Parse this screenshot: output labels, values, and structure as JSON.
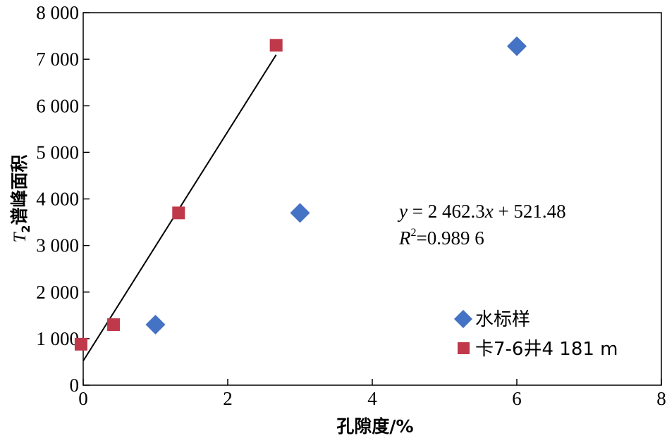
{
  "chart_data": {
    "type": "scatter",
    "xlabel": "孔隙度/%",
    "ylabel_italic": "T",
    "ylabel_sub": "2",
    "ylabel_rest": "谱峰面积",
    "xlim": [
      0,
      8
    ],
    "ylim": [
      0,
      8000
    ],
    "x_ticks": [
      0,
      2,
      4,
      6,
      8
    ],
    "x_tick_labels": [
      "0",
      "2",
      "4",
      "6",
      "8"
    ],
    "y_ticks": [
      0,
      1000,
      2000,
      3000,
      4000,
      5000,
      6000,
      7000,
      8000
    ],
    "y_tick_labels": [
      "0",
      "1 000",
      "2 000",
      "3 000",
      "4 000",
      "5 000",
      "6 000",
      "7 000",
      "8 000"
    ],
    "grid": false,
    "legend_position": "bottom-right",
    "series": [
      {
        "name": "水标样",
        "marker": "diamond",
        "color": "#4472C4",
        "points": [
          [
            1.0,
            1300
          ],
          [
            3.0,
            3700
          ],
          [
            6.0,
            7280
          ]
        ]
      },
      {
        "name": "卡7-6井4 181 m",
        "marker": "square",
        "color": "#C0394B",
        "points": [
          [
            -0.03,
            880
          ],
          [
            0.42,
            1300
          ],
          [
            1.32,
            3700
          ],
          [
            2.67,
            7300
          ]
        ]
      }
    ],
    "fit_line": {
      "slope": 2462.3,
      "intercept": 521.48,
      "x_range": [
        0,
        2.67
      ],
      "color": "#000000"
    },
    "annotation": {
      "eq_y": "y",
      "eq_rest": " = 2 462.3",
      "eq_x": "x",
      "eq_tail": " + 521.48",
      "r_label": "R",
      "r_sup": "2",
      "r_value": "=0.989 6"
    }
  }
}
